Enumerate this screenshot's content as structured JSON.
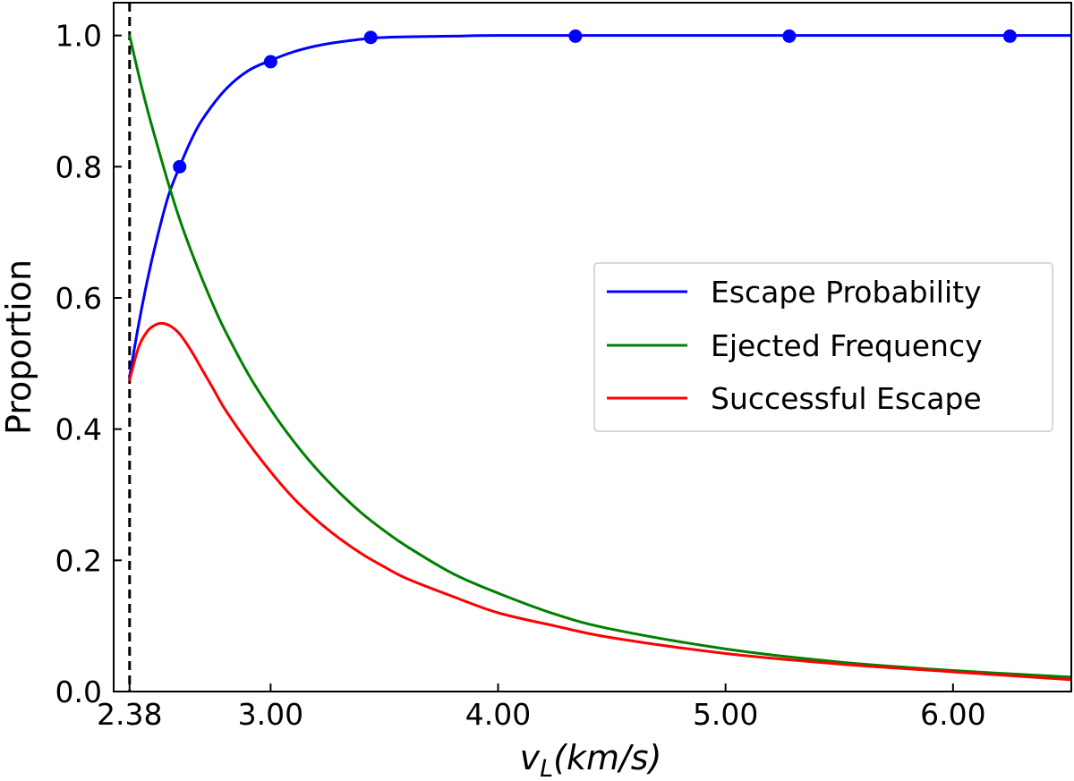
{
  "chart_data": {
    "type": "line",
    "xlabel": "v_L(km/s)",
    "xlabel_main": "v",
    "xlabel_sub": "L",
    "xlabel_rest": "(km/s)",
    "ylabel": "Proportion",
    "xlim": [
      2.31,
      6.52
    ],
    "ylim": [
      0.0,
      1.05
    ],
    "x_ticks": [
      {
        "value": 2.38,
        "label": "2.38"
      },
      {
        "value": 3.0,
        "label": "3.00"
      },
      {
        "value": 4.0,
        "label": "4.00"
      },
      {
        "value": 5.0,
        "label": "5.00"
      },
      {
        "value": 6.0,
        "label": "6.00"
      }
    ],
    "y_ticks": [
      {
        "value": 0.0,
        "label": "0.0"
      },
      {
        "value": 0.2,
        "label": "0.2"
      },
      {
        "value": 0.4,
        "label": "0.4"
      },
      {
        "value": 0.6,
        "label": "0.6"
      },
      {
        "value": 0.8,
        "label": "0.8"
      },
      {
        "value": 1.0,
        "label": "1.0"
      }
    ],
    "vline": {
      "x": 2.38,
      "style": "dashed",
      "color": "#000000"
    },
    "grid": false,
    "legend": "center-right",
    "series": [
      {
        "name": "Escape Probability",
        "color": "#0000ff",
        "x": [
          2.38,
          2.42,
          2.46,
          2.5,
          2.55,
          2.6,
          2.65,
          2.7,
          2.8,
          2.9,
          3.0,
          3.1,
          3.2,
          3.3,
          3.45,
          3.6,
          3.8,
          4.0,
          4.5,
          5.0,
          5.5,
          6.0,
          6.52
        ],
        "values": [
          0.48,
          0.56,
          0.63,
          0.69,
          0.755,
          0.8,
          0.84,
          0.872,
          0.917,
          0.946,
          0.962,
          0.975,
          0.984,
          0.99,
          0.996,
          0.998,
          0.999,
          1.0,
          1.0,
          1.0,
          1.0,
          1.0,
          1.0
        ],
        "markers": [
          {
            "x": 2.6,
            "y": 0.8
          },
          {
            "x": 3.0,
            "y": 0.96
          },
          {
            "x": 3.44,
            "y": 0.997
          },
          {
            "x": 4.34,
            "y": 0.999
          },
          {
            "x": 5.28,
            "y": 0.999
          },
          {
            "x": 6.25,
            "y": 0.999
          }
        ]
      },
      {
        "name": "Ejected Frequency",
        "color": "#008000",
        "x": [
          2.38,
          2.42,
          2.46,
          2.5,
          2.55,
          2.6,
          2.65,
          2.7,
          2.75,
          2.8,
          2.9,
          3.0,
          3.1,
          3.2,
          3.3,
          3.4,
          3.5,
          3.6,
          3.8,
          4.0,
          4.25,
          4.5,
          5.0,
          5.5,
          6.0,
          6.52
        ],
        "values": [
          1.0,
          0.94,
          0.885,
          0.835,
          0.775,
          0.72,
          0.672,
          0.628,
          0.587,
          0.55,
          0.485,
          0.43,
          0.382,
          0.34,
          0.304,
          0.272,
          0.245,
          0.221,
          0.18,
          0.15,
          0.118,
          0.095,
          0.065,
          0.045,
          0.032,
          0.022
        ]
      },
      {
        "name": "Successful Escape",
        "color": "#ff0000",
        "x": [
          2.38,
          2.42,
          2.46,
          2.5,
          2.53,
          2.56,
          2.6,
          2.65,
          2.7,
          2.75,
          2.8,
          2.9,
          3.0,
          3.1,
          3.2,
          3.3,
          3.4,
          3.5,
          3.6,
          3.8,
          4.0,
          4.25,
          4.5,
          5.0,
          5.5,
          6.0,
          6.52
        ],
        "values": [
          0.475,
          0.525,
          0.55,
          0.56,
          0.561,
          0.557,
          0.545,
          0.52,
          0.49,
          0.46,
          0.43,
          0.38,
          0.335,
          0.295,
          0.262,
          0.234,
          0.21,
          0.19,
          0.172,
          0.145,
          0.12,
          0.1,
          0.082,
          0.058,
          0.042,
          0.03,
          0.018
        ]
      }
    ]
  }
}
